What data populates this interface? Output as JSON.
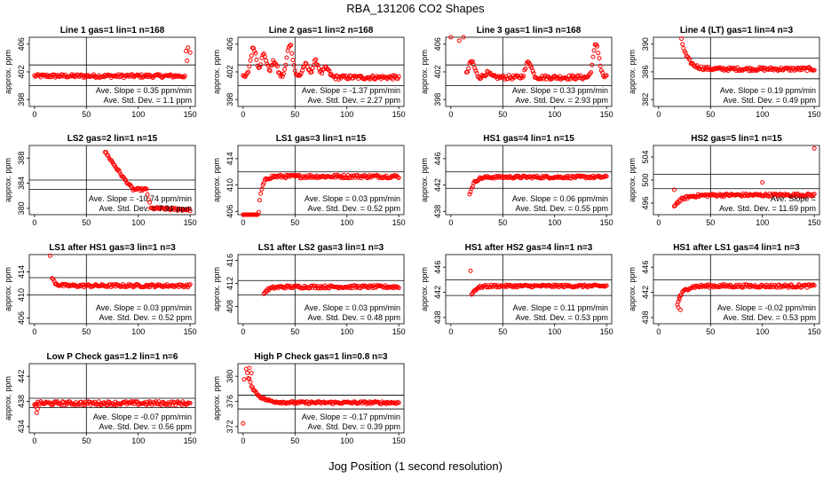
{
  "page": {
    "title": "RBA_131206  CO2 Shapes",
    "xlabel": "Jog Position (1 second resolution)"
  },
  "chart_data": [
    {
      "type": "scatter",
      "title": "Line 1 gas=1 lin=1 n=168",
      "ylabel": "approx. ppm",
      "xlim": [
        -5,
        155
      ],
      "ylim": [
        397,
        407
      ],
      "yticks": [
        398,
        402,
        406
      ],
      "xticks": [
        0,
        50,
        100,
        150
      ],
      "vline": 50,
      "hlines": [
        400,
        403
      ],
      "slope_label": "Ave. Slope =  0.35 ppm/min",
      "sd_label": "Ave. Std. Dev. =  1.1 ppm",
      "series": [
        {
          "color": "#ff0000",
          "shape": "flat",
          "base": 401.4,
          "noise": 0.25,
          "x": [
            0,
            145
          ],
          "extra": [
            [
              146,
              405.0
            ],
            [
              147,
              403.6
            ],
            [
              148,
              405.5
            ],
            [
              150,
              404.8
            ]
          ]
        }
      ]
    },
    {
      "type": "scatter",
      "title": "Line 2 gas=1 lin=2 n=168",
      "ylabel": "approx. ppm",
      "xlim": [
        -5,
        155
      ],
      "ylim": [
        397,
        407
      ],
      "yticks": [
        398,
        402,
        406
      ],
      "xticks": [
        0,
        50,
        100,
        150
      ],
      "vline": 50,
      "hlines": [
        400,
        403
      ],
      "slope_label": "Ave. Slope =  -1.37 ppm/min",
      "sd_label": "Ave. Std. Dev. =  2.27 ppm",
      "series": [
        {
          "color": "#ff0000",
          "shape": "wavy",
          "base": 401.2,
          "noise": 0.3,
          "x": [
            0,
            150
          ],
          "bumps": [
            [
              10,
              405.5
            ],
            [
              20,
              404.5
            ],
            [
              30,
              403.5
            ],
            [
              45,
              406
            ],
            [
              60,
              403
            ],
            [
              70,
              403.5
            ],
            [
              80,
              402.5
            ]
          ]
        }
      ]
    },
    {
      "type": "scatter",
      "title": "Line 3 gas=1 lin=3 n=168",
      "ylabel": "approx. ppm",
      "xlim": [
        -5,
        155
      ],
      "ylim": [
        397,
        407
      ],
      "yticks": [
        398,
        402,
        406
      ],
      "xticks": [
        0,
        50,
        100,
        150
      ],
      "vline": 50,
      "hlines": [
        400,
        403
      ],
      "slope_label": "Ave. Slope =  0.33 ppm/min",
      "sd_label": "Ave. Std. Dev. =  2.93 ppm",
      "series": [
        {
          "color": "#ff0000",
          "shape": "wavy",
          "base": 401.2,
          "noise": 0.3,
          "x": [
            15,
            150
          ],
          "bumps": [
            [
              20,
              403.5
            ],
            [
              35,
              401.8
            ],
            [
              75,
              403.5
            ],
            [
              140,
              406
            ]
          ],
          "extra": [
            [
              0,
              407
            ],
            [
              8,
              406.5
            ],
            [
              12,
              407.5
            ]
          ]
        }
      ]
    },
    {
      "type": "scatter",
      "title": "Line 4 (LT) gas=1 lin=4 n=3",
      "ylabel": "approx. ppm",
      "xlim": [
        -5,
        155
      ],
      "ylim": [
        381,
        391
      ],
      "yticks": [
        382,
        386,
        390
      ],
      "xticks": [
        0,
        50,
        100,
        150
      ],
      "vline": 50,
      "hlines": [
        385,
        388
      ],
      "slope_label": "Ave. Slope =  0.19 ppm/min",
      "sd_label": "Ave. Std. Dev. =  0.49 ppm",
      "series": [
        {
          "color": "#ff0000",
          "shape": "decay",
          "base": 386.4,
          "start": 390,
          "tau": 6,
          "noise": 0.25,
          "x": [
            23,
            150
          ],
          "extra": [
            [
              22,
              390.8
            ]
          ]
        }
      ]
    },
    {
      "type": "scatter",
      "title": "LS2 gas=2 lin=1 n=15",
      "ylabel": "approx. ppm",
      "xlim": [
        -5,
        155
      ],
      "ylim": [
        379,
        390
      ],
      "yticks": [
        380,
        384,
        388
      ],
      "xticks": [
        0,
        50,
        100,
        150
      ],
      "vline": 50,
      "hlines": [
        383,
        384.5
      ],
      "slope_label": "Ave. Slope =  -10.74 ppm/min",
      "sd_label": "Ave. Std. Dev. =  7.91 ppm",
      "series": [
        {
          "color": "#ff0000",
          "shape": "steps",
          "noise": 0.2,
          "x": [
            68,
            150
          ],
          "steps": [
            [
              68,
              389
            ],
            [
              85,
              385
            ],
            [
              95,
              383
            ],
            [
              108,
              383
            ],
            [
              112,
              380
            ],
            [
              150,
              379.8
            ]
          ]
        }
      ]
    },
    {
      "type": "scatter",
      "title": "LS1 gas=3 lin=1 n=15",
      "ylabel": "approx. ppm",
      "xlim": [
        -5,
        155
      ],
      "ylim": [
        405.5,
        416
      ],
      "yticks": [
        406,
        410,
        414
      ],
      "xticks": [
        0,
        50,
        100,
        150
      ],
      "vline": 50,
      "hlines": [
        409.5,
        412
      ],
      "slope_label": "Ave. Slope =  0.03 ppm/min",
      "sd_label": "Ave. Std. Dev. =  0.52 ppm",
      "series": [
        {
          "color": "#ff0000",
          "shape": "rise",
          "base": 411.3,
          "start": 406,
          "tau": 3,
          "noise": 0.25,
          "x": [
            0,
            150
          ],
          "riseAt": 15
        }
      ]
    },
    {
      "type": "scatter",
      "title": "HS1 gas=4 lin=1 n=15",
      "ylabel": "approx. ppm",
      "xlim": [
        -5,
        155
      ],
      "ylim": [
        437.5,
        448
      ],
      "yticks": [
        438,
        442,
        446
      ],
      "xticks": [
        0,
        50,
        100,
        150
      ],
      "vline": 50,
      "hlines": [
        441.5,
        444
      ],
      "slope_label": "Ave. Slope =  0.06 ppm/min",
      "sd_label": "Ave. Std. Dev. =  0.55 ppm",
      "series": [
        {
          "color": "#ff0000",
          "shape": "rise",
          "base": 443.2,
          "start": 440.5,
          "tau": 4,
          "noise": 0.2,
          "x": [
            18,
            150
          ],
          "riseAt": 18
        }
      ]
    },
    {
      "type": "scatter",
      "title": "HS2 gas=5 lin=1 n=15",
      "ylabel": "approx. ppm",
      "xlim": [
        -5,
        155
      ],
      "ylim": [
        494,
        506
      ],
      "yticks": [
        496,
        500,
        504
      ],
      "xticks": [
        0,
        50,
        100,
        150
      ],
      "vline": 50,
      "hlines": [
        498.5,
        501
      ],
      "slope_label": "Ave. Slope =  ",
      "sd_label": "Ave. Std. Dev. =  11.69 ppm",
      "series": [
        {
          "color": "#ff0000",
          "shape": "rise",
          "base": 497.4,
          "start": 495.5,
          "tau": 8,
          "noise": 0.25,
          "x": [
            15,
            150
          ],
          "riseAt": 15,
          "extra": [
            [
              100,
              499.6
            ],
            [
              150,
              505.5
            ],
            [
              15,
              498.3
            ]
          ]
        }
      ]
    },
    {
      "type": "scatter",
      "title": "LS1 after HS1 gas=3 lin=1 n=3",
      "ylabel": "approx. ppm",
      "xlim": [
        -5,
        155
      ],
      "ylim": [
        405,
        417
      ],
      "yticks": [
        406,
        410,
        414
      ],
      "xticks": [
        0,
        50,
        100,
        150
      ],
      "vline": 50,
      "hlines": [
        410,
        413
      ],
      "slope_label": "Ave. Slope =  0.03 ppm/min",
      "sd_label": "Ave. Std. Dev. =  0.52 ppm",
      "series": [
        {
          "color": "#ff0000",
          "shape": "decay",
          "base": 411.6,
          "start": 413,
          "tau": 3,
          "noise": 0.25,
          "x": [
            17,
            150
          ],
          "extra": [
            [
              15,
              416.8
            ]
          ]
        }
      ]
    },
    {
      "type": "scatter",
      "title": "LS1 after LS2 gas=3 lin=1 n=3",
      "ylabel": "approx. ppm",
      "xlim": [
        -5,
        155
      ],
      "ylim": [
        405,
        417
      ],
      "yticks": [
        408,
        412,
        416
      ],
      "xticks": [
        0,
        50,
        100,
        150
      ],
      "vline": 50,
      "hlines": [
        410,
        412.5
      ],
      "slope_label": "Ave. Slope =  0.03 ppm/min",
      "sd_label": "Ave. Std. Dev. =  0.48 ppm",
      "series": [
        {
          "color": "#ff0000",
          "shape": "rise",
          "base": 411.4,
          "start": 410.3,
          "tau": 5,
          "noise": 0.25,
          "x": [
            20,
            150
          ],
          "riseAt": 20
        }
      ]
    },
    {
      "type": "scatter",
      "title": "HS1 after HS2 gas=4 lin=1 n=3",
      "ylabel": "approx. ppm",
      "xlim": [
        -5,
        155
      ],
      "ylim": [
        437,
        448
      ],
      "yticks": [
        438,
        442,
        446
      ],
      "xticks": [
        0,
        50,
        100,
        150
      ],
      "vline": 50,
      "hlines": [
        441.5,
        444
      ],
      "slope_label": "Ave. Slope =  0.11 ppm/min",
      "sd_label": "Ave. Std. Dev. =  0.53 ppm",
      "series": [
        {
          "color": "#ff0000",
          "shape": "rise",
          "base": 443,
          "start": 441.6,
          "tau": 4,
          "noise": 0.2,
          "x": [
            20,
            150
          ],
          "riseAt": 20,
          "extra": [
            [
              19,
              445.4
            ]
          ]
        }
      ]
    },
    {
      "type": "scatter",
      "title": "HS1 after LS1 gas=4 lin=1 n=3",
      "ylabel": "approx. ppm",
      "xlim": [
        -5,
        155
      ],
      "ylim": [
        437,
        448
      ],
      "yticks": [
        438,
        442,
        446
      ],
      "xticks": [
        0,
        50,
        100,
        150
      ],
      "vline": 50,
      "hlines": [
        441.5,
        444
      ],
      "slope_label": "Ave. Slope =  -0.02 ppm/min",
      "sd_label": "Ave. Std. Dev. =  0.53 ppm",
      "series": [
        {
          "color": "#ff0000",
          "shape": "rise",
          "base": 443,
          "start": 440,
          "tau": 5,
          "noise": 0.25,
          "x": [
            18,
            150
          ],
          "riseAt": 18,
          "extra": [
            [
              19,
              439.6
            ],
            [
              21,
              439.2
            ],
            [
              20,
              441.2
            ]
          ]
        }
      ]
    },
    {
      "type": "scatter",
      "title": "Low P Check gas=1.2 lin=1 n=6",
      "ylabel": "approx. ppm",
      "xlim": [
        -5,
        155
      ],
      "ylim": [
        433,
        444
      ],
      "yticks": [
        434,
        438,
        442
      ],
      "xticks": [
        0,
        50,
        100,
        150
      ],
      "vline": 50,
      "hlines": [
        437,
        438.5
      ],
      "slope_label": "Ave. Slope =  -0.07 ppm/min",
      "sd_label": "Ave. Std. Dev. =  0.56 ppm",
      "series": [
        {
          "color": "#ff0000",
          "shape": "flat",
          "base": 437.7,
          "noise": 0.3,
          "x": [
            0,
            150
          ],
          "extra": [
            [
              2,
              436.2
            ],
            [
              3,
              436.8
            ],
            [
              1,
              437.2
            ]
          ]
        }
      ]
    },
    {
      "type": "scatter",
      "title": "High P Check gas=1 lin=0.8 n=3",
      "ylabel": "approx. ppm",
      "xlim": [
        -5,
        155
      ],
      "ylim": [
        371,
        382
      ],
      "yticks": [
        372,
        376,
        380
      ],
      "xticks": [
        0,
        50,
        100,
        150
      ],
      "vline": 50,
      "hlines": [
        374.8,
        377
      ],
      "slope_label": "Ave. Slope =  -0.17 ppm/min",
      "sd_label": "Ave. Std. Dev. =  0.39 ppm",
      "series": [
        {
          "color": "#ff0000",
          "shape": "decay",
          "base": 375.8,
          "start": 381,
          "tau": 8,
          "noise": 0.2,
          "x": [
            3,
            150
          ],
          "extra": [
            [
              0,
              372.5
            ],
            [
              1,
              379.5
            ],
            [
              6,
              381.3
            ],
            [
              8,
              380.5
            ]
          ]
        }
      ]
    }
  ]
}
